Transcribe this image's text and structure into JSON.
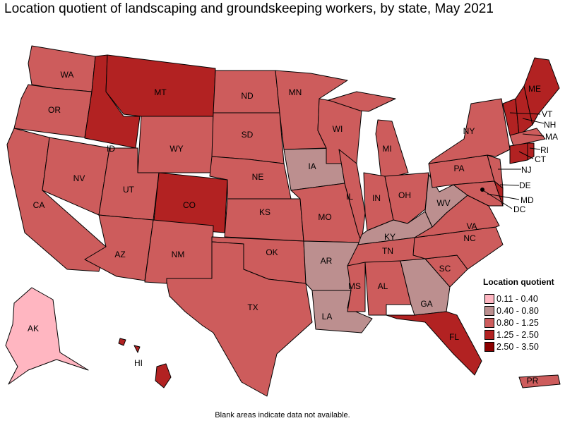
{
  "title": "Location quotient of landscaping and groundskeeping workers, by state, May 2021",
  "legend": {
    "title": "Location quotient",
    "classes": [
      {
        "label": "0.11 - 0.40",
        "color": "#ffb6c1"
      },
      {
        "label": "0.40 - 0.80",
        "color": "#bc8f8f"
      },
      {
        "label": "0.80 - 1.25",
        "color": "#cd5c5c"
      },
      {
        "label": "1.25 - 2.50",
        "color": "#b22222"
      },
      {
        "label": "2.50 - 3.50",
        "color": "#8b0000"
      }
    ]
  },
  "states": {
    "WA": 2,
    "OR": 2,
    "CA": 2,
    "NV": 2,
    "ID": 3,
    "MT": 3,
    "WY": 2,
    "UT": 2,
    "CO": 3,
    "AZ": 2,
    "NM": 2,
    "ND": 2,
    "SD": 2,
    "NE": 2,
    "KS": 2,
    "OK": 2,
    "TX": 2,
    "MN": 2,
    "IA": 1,
    "MO": 2,
    "AR": 1,
    "LA": 1,
    "WI": 2,
    "IL": 2,
    "MI": 2,
    "IN": 2,
    "OH": 2,
    "KY": 1,
    "TN": 2,
    "MS": 2,
    "AL": 2,
    "GA": 1,
    "FL": 3,
    "SC": 2,
    "NC": 2,
    "VA": 2,
    "WV": 1,
    "PA": 2,
    "NY": 2,
    "NJ": 2,
    "DE": 3,
    "MD": 2,
    "DC": 2,
    "VT": 3,
    "NH": 3,
    "ME": 3,
    "MA": 2,
    "CT": 3,
    "RI": 3,
    "AK": 0,
    "HI": 3,
    "PR": 2
  },
  "note": "Blank areas indicate data not available."
}
